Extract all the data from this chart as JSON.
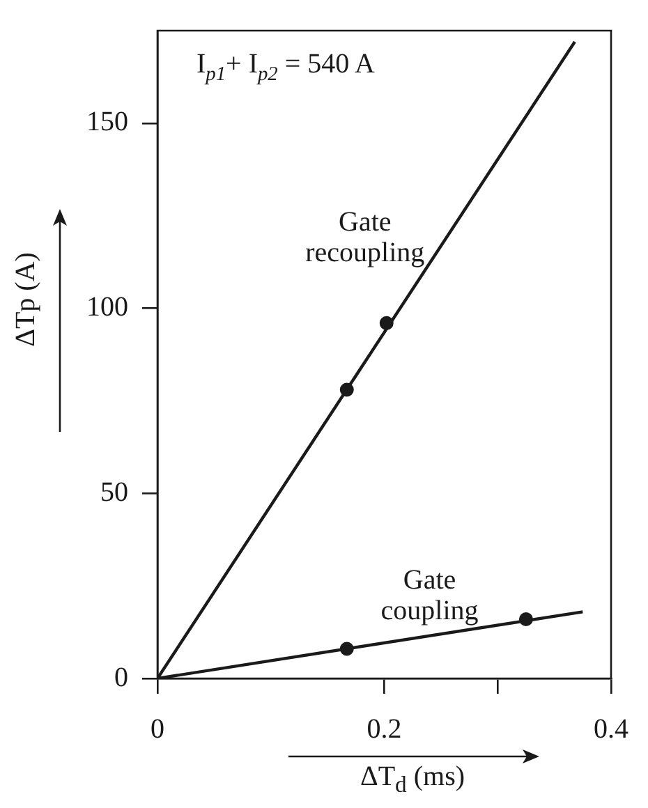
{
  "chart_data": {
    "type": "line",
    "xlabel": "ΔT$_{d}$ (ms)",
    "ylabel": "ΔTp (A)",
    "annotations": [
      "I$_{p1}$+ I$_{p2}$ = 540 A"
    ],
    "xlim": [
      0,
      0.4
    ],
    "xticks": [
      0,
      0.2,
      {
        "value": 0.3,
        "label": null
      },
      0.4
    ],
    "ylim": [
      0,
      175
    ],
    "yticks": [
      0,
      50,
      100,
      150
    ],
    "grid": false,
    "legend": false,
    "series": [
      {
        "name": "Gate recoupling",
        "type": "line",
        "marker": "none",
        "color": "#1a1a1a",
        "x": [
          0,
          0.368
        ],
        "values": [
          0,
          172
        ]
      },
      {
        "type": "scatter",
        "marker": "circle",
        "color": "#1a1a1a",
        "x": [
          0.167,
          0.202
        ],
        "values": [
          78,
          96
        ]
      },
      {
        "name": "Gate coupling",
        "type": "line",
        "marker": "none",
        "color": "#1a1a1a",
        "x": [
          0,
          0.375
        ],
        "values": [
          0,
          18
        ]
      },
      {
        "type": "scatter",
        "marker": "circle",
        "color": "#1a1a1a",
        "x": [
          0.167,
          0.325
        ],
        "values": [
          8,
          16
        ]
      }
    ]
  }
}
